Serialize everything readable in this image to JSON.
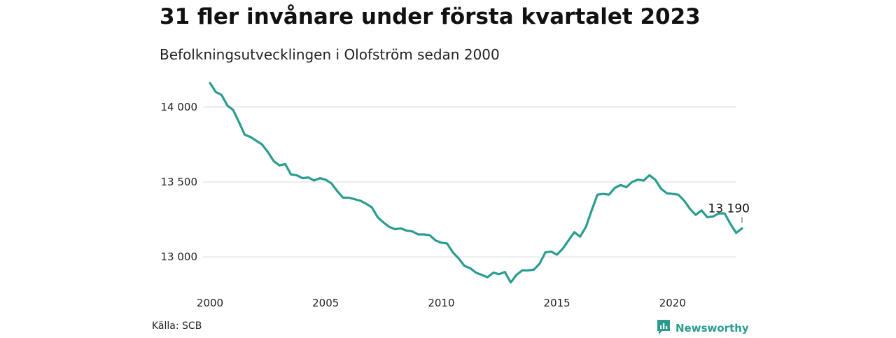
{
  "chart_data": {
    "type": "line",
    "title": "31 fler invånare under första kvartalet 2023",
    "subtitle": "Befolkningsutvecklingen i Olofström sedan 2000",
    "xlabel": "",
    "ylabel": "",
    "xlim": [
      2000,
      2023
    ],
    "ylim": [
      12800,
      14200
    ],
    "x_ticks": [
      2000,
      2005,
      2010,
      2015,
      2020
    ],
    "x_tick_labels": [
      "2000",
      "2005",
      "2010",
      "2015",
      "2020"
    ],
    "y_ticks": [
      13000,
      13500,
      14000
    ],
    "y_tick_labels": [
      "13 000",
      "13 500",
      "14 000"
    ],
    "grid": "horizontal",
    "line_color": "#2a9d8f",
    "end_label": "13 190",
    "series": [
      {
        "x": [
          2000.0,
          2000.25,
          2000.5,
          2000.75,
          2001.0,
          2001.25,
          2001.5,
          2001.75,
          2002.0,
          2002.25,
          2002.5,
          2002.75,
          2003.0,
          2003.25,
          2003.5,
          2003.75,
          2004.0,
          2004.25,
          2004.5,
          2004.75,
          2005.0,
          2005.25,
          2005.5,
          2005.75,
          2006.0,
          2006.25,
          2006.5,
          2006.75,
          2007.0,
          2007.25,
          2007.5,
          2007.75,
          2008.0,
          2008.25,
          2008.5,
          2008.75,
          2009.0,
          2009.25,
          2009.5,
          2009.75,
          2010.0,
          2010.25,
          2010.5,
          2010.75,
          2011.0,
          2011.25,
          2011.5,
          2011.75,
          2012.0,
          2012.25,
          2012.5,
          2012.75,
          2013.0,
          2013.25,
          2013.5,
          2013.75,
          2014.0,
          2014.25,
          2014.5,
          2014.75,
          2015.0,
          2015.25,
          2015.5,
          2015.75,
          2016.0,
          2016.25,
          2016.5,
          2016.75,
          2017.0,
          2017.25,
          2017.5,
          2017.75,
          2018.0,
          2018.25,
          2018.5,
          2018.75,
          2019.0,
          2019.25,
          2019.5,
          2019.75,
          2020.0,
          2020.25,
          2020.5,
          2020.75,
          2021.0,
          2021.25,
          2021.5,
          2021.75,
          2022.0,
          2022.25,
          2022.5,
          2022.75,
          2023.0
        ],
        "values": [
          14160,
          14100,
          14080,
          14010,
          13980,
          13900,
          13815,
          13800,
          13775,
          13750,
          13700,
          13640,
          13610,
          13620,
          13550,
          13545,
          13525,
          13530,
          13510,
          13525,
          13515,
          13490,
          13440,
          13395,
          13395,
          13385,
          13375,
          13355,
          13330,
          13265,
          13230,
          13200,
          13185,
          13190,
          13175,
          13170,
          13150,
          13150,
          13145,
          13110,
          13095,
          13090,
          13030,
          12990,
          12940,
          12925,
          12895,
          12880,
          12865,
          12895,
          12885,
          12900,
          12830,
          12880,
          12910,
          12910,
          12915,
          12955,
          13030,
          13035,
          13015,
          13055,
          13110,
          13165,
          13135,
          13200,
          13310,
          13415,
          13420,
          13415,
          13460,
          13480,
          13465,
          13500,
          13515,
          13510,
          13545,
          13515,
          13455,
          13425,
          13420,
          13415,
          13375,
          13320,
          13280,
          13310,
          13265,
          13270,
          13290,
          13290,
          13220,
          13160,
          13190
        ]
      }
    ]
  },
  "source_label": "Källa: SCB",
  "brand_name": "Newsworthy"
}
